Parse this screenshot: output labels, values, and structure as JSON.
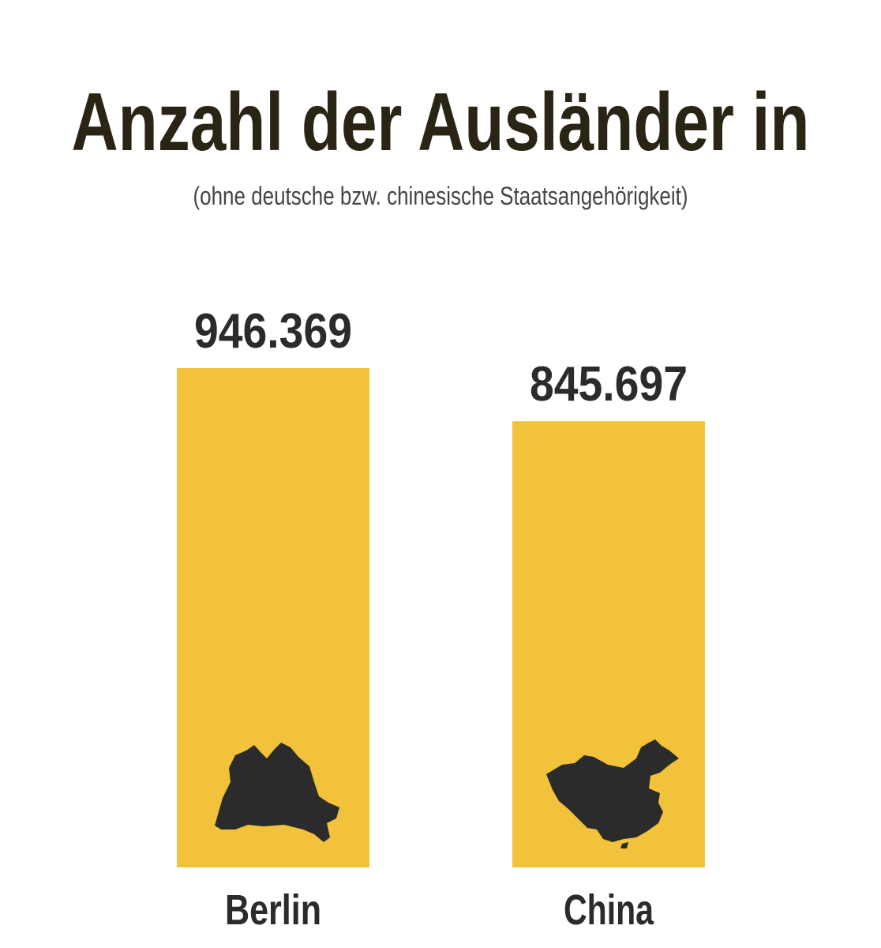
{
  "chart_data": {
    "type": "bar",
    "title": "Anzahl der Ausländer in",
    "subtitle": "(ohne deutsche bzw. chinesische Staatsangehörigkeit)",
    "categories": [
      "Berlin",
      "China"
    ],
    "values": [
      946369,
      845697
    ],
    "value_labels": [
      "946.369",
      "845.697"
    ],
    "color": "#f2c23a"
  }
}
